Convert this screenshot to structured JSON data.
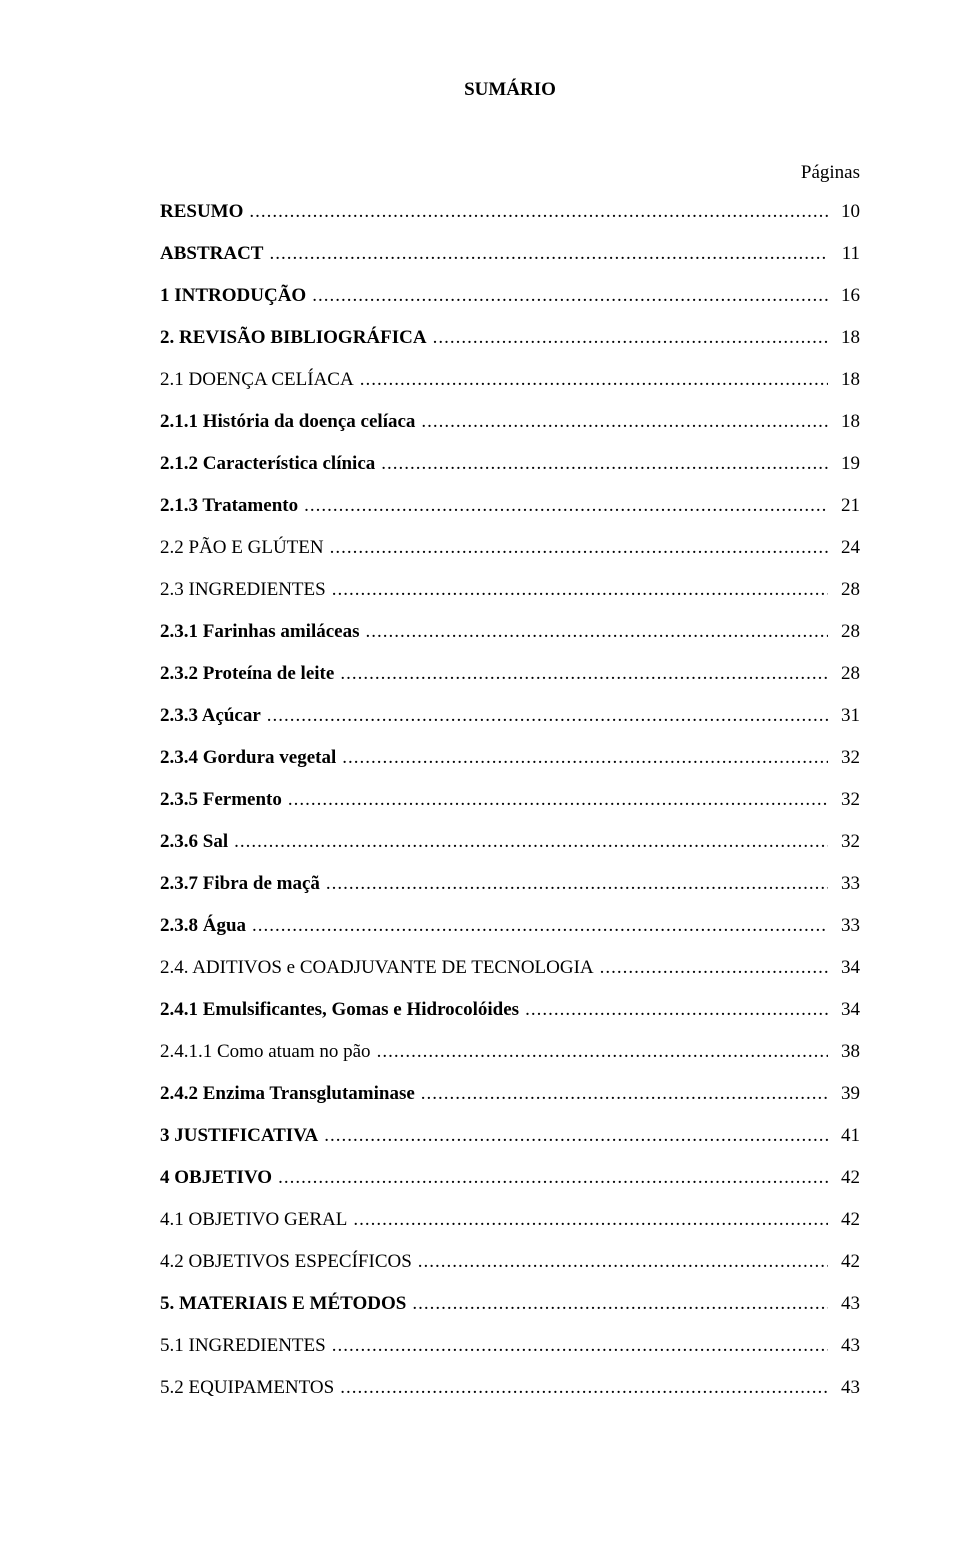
{
  "title": "SUMÁRIO",
  "pages_label": "Páginas",
  "toc": [
    {
      "label": "RESUMO",
      "page": "10",
      "bold": true
    },
    {
      "label": "ABSTRACT",
      "page": "11",
      "bold": true
    },
    {
      "label": "1 INTRODUÇÃO",
      "page": "16",
      "bold": true
    },
    {
      "label": "2. REVISÃO BIBLIOGRÁFICA",
      "page": "18",
      "bold": true
    },
    {
      "label": "2.1 DOENÇA CELÍACA",
      "page": "18",
      "bold": false
    },
    {
      "label": "2.1.1 História da doença celíaca",
      "page": "18",
      "bold": true
    },
    {
      "label": "2.1.2 Característica clínica",
      "page": "19",
      "bold": true
    },
    {
      "label": "2.1.3 Tratamento",
      "page": "21",
      "bold": true
    },
    {
      "label": "2.2 PÃO E GLÚTEN",
      "page": "24",
      "bold": false
    },
    {
      "label": "2.3 INGREDIENTES",
      "page": "28",
      "bold": false
    },
    {
      "label": "2.3.1 Farinhas amiláceas",
      "page": "28",
      "bold": true
    },
    {
      "label": "2.3.2 Proteína de leite",
      "page": "28",
      "bold": true
    },
    {
      "label": "2.3.3 Açúcar",
      "page": "31",
      "bold": true
    },
    {
      "label": "2.3.4 Gordura vegetal",
      "page": "32",
      "bold": true
    },
    {
      "label": "2.3.5 Fermento",
      "page": "32",
      "bold": true
    },
    {
      "label": "2.3.6 Sal",
      "page": "32",
      "bold": true
    },
    {
      "label": "2.3.7 Fibra de maçã",
      "page": "33",
      "bold": true
    },
    {
      "label": "2.3.8 Água",
      "page": "33",
      "bold": true
    },
    {
      "label": "2.4. ADITIVOS e COADJUVANTE DE TECNOLOGIA ",
      "page": "34",
      "bold": false
    },
    {
      "label": "2.4.1 Emulsificantes, Gomas e Hidrocolóides",
      "page": "34",
      "bold": true
    },
    {
      "label": "2.4.1.1 Como atuam no pão",
      "page": "38",
      "bold": false
    },
    {
      "label": "2.4.2 Enzima Transglutaminase",
      "page": "39",
      "bold": true
    },
    {
      "label": "3 JUSTIFICATIVA",
      "page": "41",
      "bold": true
    },
    {
      "label": "4 OBJETIVO",
      "page": "42",
      "bold": true
    },
    {
      "label": "4.1 OBJETIVO GERAL",
      "page": "42",
      "bold": false
    },
    {
      "label": "4.2 OBJETIVOS ESPECÍFICOS",
      "page": "42",
      "bold": false
    },
    {
      "label": "5. MATERIAIS E MÉTODOS",
      "page": "43",
      "bold": true
    },
    {
      "label": "5.1 INGREDIENTES",
      "page": "43",
      "bold": false
    },
    {
      "label": "5.2 EQUIPAMENTOS",
      "page": "43",
      "bold": false
    }
  ]
}
